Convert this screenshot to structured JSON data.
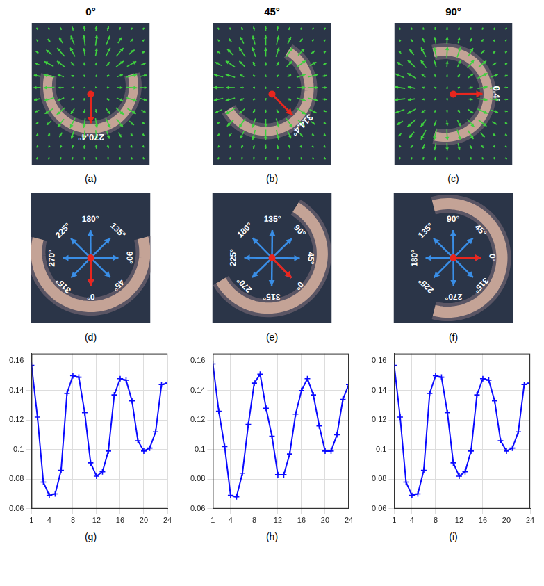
{
  "columns": [
    "0°",
    "45°",
    "90°"
  ],
  "panels_top": [
    {
      "label": "(a)",
      "direction": {
        "value": 270.4,
        "label": "270.4°"
      }
    },
    {
      "label": "(b)",
      "direction": {
        "value": 314.4,
        "label": "314.4°"
      }
    },
    {
      "label": "(c)",
      "direction": {
        "value": 0.4,
        "label": "0.4°"
      }
    }
  ],
  "panels_compass": [
    {
      "label": "(d)",
      "directions": [
        {
          "value": 0,
          "label": "0°"
        },
        {
          "value": 45,
          "label": "45°"
        },
        {
          "value": 90,
          "label": "90°"
        },
        {
          "value": 135,
          "label": "135°"
        },
        {
          "value": 180,
          "label": "180°"
        },
        {
          "value": 225,
          "label": "225°"
        },
        {
          "value": 270,
          "label": "270°"
        },
        {
          "value": 315,
          "label": "315°"
        }
      ]
    },
    {
      "label": "(e)",
      "directions": [
        {
          "value": 0,
          "label": "0°"
        },
        {
          "value": 45,
          "label": "45°"
        },
        {
          "value": 90,
          "label": "90°"
        },
        {
          "value": 135,
          "label": "135°"
        },
        {
          "value": 180,
          "label": "180°"
        },
        {
          "value": 225,
          "label": "225°"
        },
        {
          "value": 270,
          "label": "270°"
        },
        {
          "value": 315,
          "label": "315°"
        }
      ]
    },
    {
      "label": "(f)",
      "directions": [
        {
          "value": 0,
          "label": "0°"
        },
        {
          "value": 45,
          "label": "45°"
        },
        {
          "value": 90,
          "label": "90°"
        },
        {
          "value": 135,
          "label": "135°"
        },
        {
          "value": 180,
          "label": "180°"
        },
        {
          "value": 225,
          "label": "225°"
        },
        {
          "value": 270,
          "label": "270°"
        },
        {
          "value": 315,
          "label": "315°"
        }
      ]
    }
  ],
  "chart_panel_labels": [
    "(g)",
    "(h)",
    "(i)"
  ],
  "chart_data": [
    {
      "type": "line",
      "x": [
        1,
        2,
        3,
        4,
        5,
        6,
        7,
        8,
        9,
        10,
        11,
        12,
        13,
        14,
        15,
        16,
        17,
        18,
        19,
        20,
        21,
        22,
        23,
        24
      ],
      "series": [
        {
          "color": "#0a0aff",
          "marker": "plus",
          "line_style": "solid",
          "values": [
            0.157,
            0.122,
            0.078,
            0.069,
            0.07,
            0.086,
            0.138,
            0.15,
            0.149,
            0.125,
            0.091,
            0.082,
            0.085,
            0.099,
            0.137,
            0.148,
            0.147,
            0.133,
            0.106,
            0.099,
            0.101,
            0.112,
            0.144,
            0.145
          ]
        }
      ],
      "xlim": [
        1,
        24
      ],
      "xticks": [
        1,
        4,
        8,
        12,
        16,
        20,
        24
      ],
      "ylim": [
        0.06,
        0.165
      ],
      "yticks": [
        0.06,
        0.08,
        0.1,
        0.12,
        0.14,
        0.16
      ],
      "grid": true
    },
    {
      "type": "line",
      "x": [
        1,
        2,
        3,
        4,
        5,
        6,
        7,
        8,
        9,
        10,
        11,
        12,
        13,
        14,
        15,
        16,
        17,
        18,
        19,
        20,
        21,
        22,
        23,
        24
      ],
      "series": [
        {
          "color": "#0a0aff",
          "marker": "plus",
          "line_style": "solid",
          "values": [
            0.158,
            0.126,
            0.102,
            0.069,
            0.068,
            0.084,
            0.117,
            0.145,
            0.151,
            0.128,
            0.109,
            0.083,
            0.083,
            0.097,
            0.124,
            0.14,
            0.148,
            0.137,
            0.116,
            0.099,
            0.099,
            0.11,
            0.134,
            0.144
          ]
        }
      ],
      "xlim": [
        1,
        24
      ],
      "xticks": [
        1,
        4,
        8,
        12,
        16,
        20,
        24
      ],
      "ylim": [
        0.06,
        0.165
      ],
      "yticks": [
        0.06,
        0.08,
        0.1,
        0.12,
        0.14,
        0.16
      ],
      "grid": true
    },
    {
      "type": "line",
      "x": [
        1,
        2,
        3,
        4,
        5,
        6,
        7,
        8,
        9,
        10,
        11,
        12,
        13,
        14,
        15,
        16,
        17,
        18,
        19,
        20,
        21,
        22,
        23,
        24
      ],
      "series": [
        {
          "color": "#0a0aff",
          "marker": "plus",
          "line_style": "solid",
          "values": [
            0.157,
            0.122,
            0.078,
            0.069,
            0.07,
            0.086,
            0.138,
            0.15,
            0.149,
            0.125,
            0.091,
            0.082,
            0.085,
            0.099,
            0.137,
            0.148,
            0.147,
            0.133,
            0.106,
            0.099,
            0.101,
            0.112,
            0.144,
            0.145
          ]
        }
      ],
      "xlim": [
        1,
        24
      ],
      "xticks": [
        1,
        4,
        8,
        12,
        16,
        20,
        24
      ],
      "ylim": [
        0.06,
        0.165
      ],
      "yticks": [
        0.06,
        0.08,
        0.1,
        0.12,
        0.14,
        0.16
      ],
      "grid": true
    }
  ]
}
